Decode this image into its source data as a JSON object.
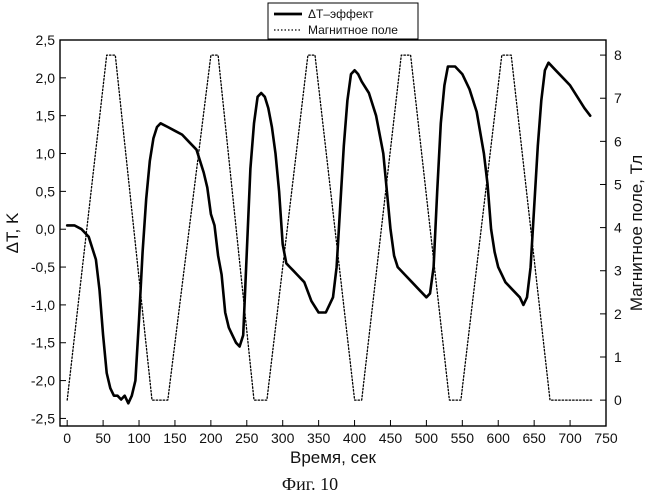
{
  "chart_data": {
    "type": "line",
    "xlabel": "Время, сек",
    "ylabel_left": "ΔT, K",
    "ylabel_right": "Магнитное поле, Тл",
    "caption": "Фиг. 10",
    "xlim": [
      -10,
      750
    ],
    "ylim_left": [
      -2.6,
      2.5
    ],
    "ylim_right": [
      -0.6,
      8.35
    ],
    "x_ticks": [
      "0",
      "50",
      "100",
      "150",
      "200",
      "250",
      "300",
      "350",
      "400",
      "450",
      "500",
      "550",
      "600",
      "650",
      "700",
      "750"
    ],
    "y_left_ticks": [
      "2,5",
      "2,0",
      "1,5",
      "1,0",
      "0,5",
      "0,0",
      "-0,5",
      "-1,0",
      "-1,5",
      "-2,0",
      "-2,5"
    ],
    "y_right_ticks": [
      "8",
      "7",
      "6",
      "5",
      "4",
      "3",
      "2",
      "1",
      "0"
    ],
    "legend_position": "top-center",
    "series": [
      {
        "name": "ΔT–эффект",
        "axis": "left",
        "style": "solid-thick",
        "color": "#000000",
        "points": [
          [
            0,
            0.05
          ],
          [
            10,
            0.05
          ],
          [
            20,
            0.0
          ],
          [
            30,
            -0.1
          ],
          [
            40,
            -0.4
          ],
          [
            45,
            -0.8
          ],
          [
            50,
            -1.4
          ],
          [
            55,
            -1.9
          ],
          [
            60,
            -2.1
          ],
          [
            65,
            -2.2
          ],
          [
            70,
            -2.2
          ],
          [
            75,
            -2.25
          ],
          [
            80,
            -2.2
          ],
          [
            85,
            -2.3
          ],
          [
            90,
            -2.2
          ],
          [
            95,
            -2.0
          ],
          [
            100,
            -1.2
          ],
          [
            105,
            -0.3
          ],
          [
            110,
            0.4
          ],
          [
            115,
            0.9
          ],
          [
            120,
            1.2
          ],
          [
            125,
            1.35
          ],
          [
            130,
            1.4
          ],
          [
            140,
            1.35
          ],
          [
            150,
            1.3
          ],
          [
            160,
            1.25
          ],
          [
            170,
            1.15
          ],
          [
            180,
            1.05
          ],
          [
            190,
            0.75
          ],
          [
            195,
            0.55
          ],
          [
            200,
            0.2
          ],
          [
            205,
            0.05
          ],
          [
            210,
            -0.35
          ],
          [
            215,
            -0.6
          ],
          [
            220,
            -1.1
          ],
          [
            225,
            -1.3
          ],
          [
            230,
            -1.4
          ],
          [
            235,
            -1.5
          ],
          [
            240,
            -1.55
          ],
          [
            245,
            -1.4
          ],
          [
            250,
            -0.3
          ],
          [
            255,
            0.8
          ],
          [
            260,
            1.4
          ],
          [
            265,
            1.75
          ],
          [
            270,
            1.8
          ],
          [
            275,
            1.75
          ],
          [
            280,
            1.6
          ],
          [
            285,
            1.35
          ],
          [
            290,
            1.0
          ],
          [
            295,
            0.5
          ],
          [
            300,
            -0.2
          ],
          [
            305,
            -0.45
          ],
          [
            310,
            -0.5
          ],
          [
            315,
            -0.55
          ],
          [
            320,
            -0.6
          ],
          [
            330,
            -0.7
          ],
          [
            340,
            -0.95
          ],
          [
            350,
            -1.1
          ],
          [
            360,
            -1.1
          ],
          [
            365,
            -1.0
          ],
          [
            370,
            -0.9
          ],
          [
            375,
            -0.5
          ],
          [
            380,
            0.3
          ],
          [
            385,
            1.1
          ],
          [
            390,
            1.7
          ],
          [
            395,
            2.05
          ],
          [
            400,
            2.1
          ],
          [
            405,
            2.05
          ],
          [
            410,
            1.95
          ],
          [
            420,
            1.8
          ],
          [
            430,
            1.5
          ],
          [
            440,
            1.0
          ],
          [
            445,
            0.5
          ],
          [
            450,
            0.0
          ],
          [
            455,
            -0.35
          ],
          [
            460,
            -0.5
          ],
          [
            470,
            -0.6
          ],
          [
            480,
            -0.7
          ],
          [
            490,
            -0.8
          ],
          [
            500,
            -0.9
          ],
          [
            505,
            -0.85
          ],
          [
            510,
            -0.5
          ],
          [
            515,
            0.5
          ],
          [
            520,
            1.4
          ],
          [
            525,
            1.9
          ],
          [
            530,
            2.15
          ],
          [
            540,
            2.15
          ],
          [
            550,
            2.05
          ],
          [
            560,
            1.85
          ],
          [
            570,
            1.55
          ],
          [
            580,
            1.0
          ],
          [
            585,
            0.6
          ],
          [
            590,
            0.0
          ],
          [
            595,
            -0.3
          ],
          [
            600,
            -0.5
          ],
          [
            605,
            -0.6
          ],
          [
            610,
            -0.7
          ],
          [
            620,
            -0.8
          ],
          [
            630,
            -0.9
          ],
          [
            635,
            -1.0
          ],
          [
            640,
            -0.9
          ],
          [
            645,
            -0.5
          ],
          [
            650,
            0.3
          ],
          [
            655,
            1.1
          ],
          [
            660,
            1.7
          ],
          [
            665,
            2.1
          ],
          [
            670,
            2.2
          ],
          [
            680,
            2.1
          ],
          [
            690,
            2.0
          ],
          [
            700,
            1.9
          ],
          [
            710,
            1.75
          ],
          [
            720,
            1.6
          ],
          [
            728,
            1.5
          ]
        ]
      },
      {
        "name": "Магнитное поле",
        "axis": "right",
        "style": "dotted",
        "color": "#000000",
        "points": [
          [
            0,
            0
          ],
          [
            55,
            8
          ],
          [
            67,
            8
          ],
          [
            118,
            0
          ],
          [
            140,
            0
          ],
          [
            200,
            8
          ],
          [
            210,
            8
          ],
          [
            260,
            0
          ],
          [
            278,
            0
          ],
          [
            335,
            8
          ],
          [
            345,
            8
          ],
          [
            400,
            0
          ],
          [
            410,
            0
          ],
          [
            465,
            8
          ],
          [
            478,
            8
          ],
          [
            532,
            0
          ],
          [
            548,
            0
          ],
          [
            605,
            8
          ],
          [
            618,
            8
          ],
          [
            672,
            0
          ],
          [
            730,
            0
          ]
        ]
      }
    ]
  }
}
